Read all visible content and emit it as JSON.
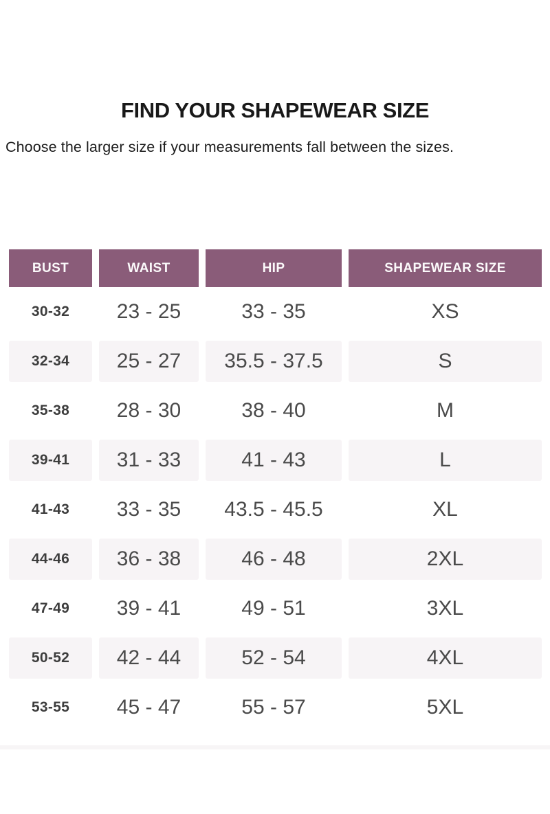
{
  "page": {
    "title": "FIND YOUR SHAPEWEAR SIZE",
    "subtitle": "Choose the larger size if your measurements fall between the sizes."
  },
  "colors": {
    "header_bg": "#8a5c79",
    "header_text": "#fbf9fa",
    "row_shade": "#f7f4f6",
    "body_text": "#4a4a4a",
    "bust_text": "#3d3d3d",
    "title_text": "#191919",
    "subtitle_text": "#1c1c1c",
    "divider": "#f7f5f6"
  },
  "table": {
    "headers": [
      "BUST",
      "WAIST",
      "HIP",
      "SHAPEWEAR SIZE"
    ],
    "rows": [
      {
        "bust": "30-32",
        "waist": "23 - 25",
        "hip": "33 - 35",
        "size": "XS"
      },
      {
        "bust": "32-34",
        "waist": "25 - 27",
        "hip": "35.5 - 37.5",
        "size": "S"
      },
      {
        "bust": "35-38",
        "waist": "28 - 30",
        "hip": "38 - 40",
        "size": "M"
      },
      {
        "bust": "39-41",
        "waist": "31 - 33",
        "hip": "41 - 43",
        "size": "L"
      },
      {
        "bust": "41-43",
        "waist": "33 - 35",
        "hip": "43.5 - 45.5",
        "size": "XL"
      },
      {
        "bust": "44-46",
        "waist": "36 - 38",
        "hip": "46 - 48",
        "size": "2XL"
      },
      {
        "bust": "47-49",
        "waist": "39 - 41",
        "hip": "49 - 51",
        "size": "3XL"
      },
      {
        "bust": "50-52",
        "waist": "42 - 44",
        "hip": "52 - 54",
        "size": "4XL"
      },
      {
        "bust": "53-55",
        "waist": "45 - 47",
        "hip": "55 - 57",
        "size": "5XL"
      }
    ]
  }
}
